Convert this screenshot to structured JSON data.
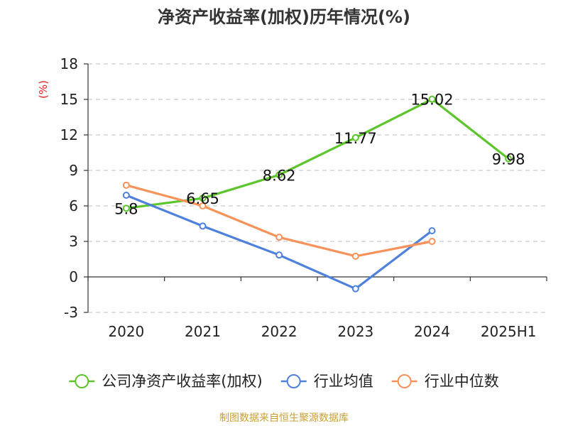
{
  "colors": {
    "roe": "#5cc52c",
    "industry_avg": "#4f81dc",
    "industry_median": "#f7935a",
    "unit": "#e02020",
    "source": "#c9a035",
    "grid": "#cccccc",
    "axis": "#333333"
  },
  "chart_data": {
    "type": "line",
    "title": "净资产收益率(加权)历年情况(%)",
    "ylabel": "(%)",
    "xlabel": "",
    "categories": [
      "2020",
      "2021",
      "2022",
      "2023",
      "2024",
      "2025H1"
    ],
    "ylim": [
      -3,
      18
    ],
    "yticks": [
      -3,
      0,
      3,
      6,
      9,
      12,
      15,
      18
    ],
    "ytick_labels": [
      "-3",
      "0",
      "3",
      "6",
      "9",
      "12",
      "15",
      "18"
    ],
    "grid": true,
    "legend_position": "bottom",
    "series": [
      {
        "name": "公司净资产收益率(加权)",
        "color_key": "roe",
        "values": [
          5.8,
          6.65,
          8.62,
          11.77,
          15.02,
          9.98
        ],
        "labels": [
          "5.8",
          "6.65",
          "8.62",
          "11.77",
          "15.02",
          "9.98"
        ],
        "show_labels": true
      },
      {
        "name": "行业均值",
        "color_key": "industry_avg",
        "values": [
          6.9,
          4.3,
          1.85,
          -1.0,
          3.9,
          null
        ],
        "show_labels": false
      },
      {
        "name": "行业中位数",
        "color_key": "industry_median",
        "values": [
          7.75,
          6.0,
          3.35,
          1.75,
          3.0,
          null
        ],
        "show_labels": false
      }
    ]
  },
  "source_text": "制图数据来自恒生聚源数据库"
}
